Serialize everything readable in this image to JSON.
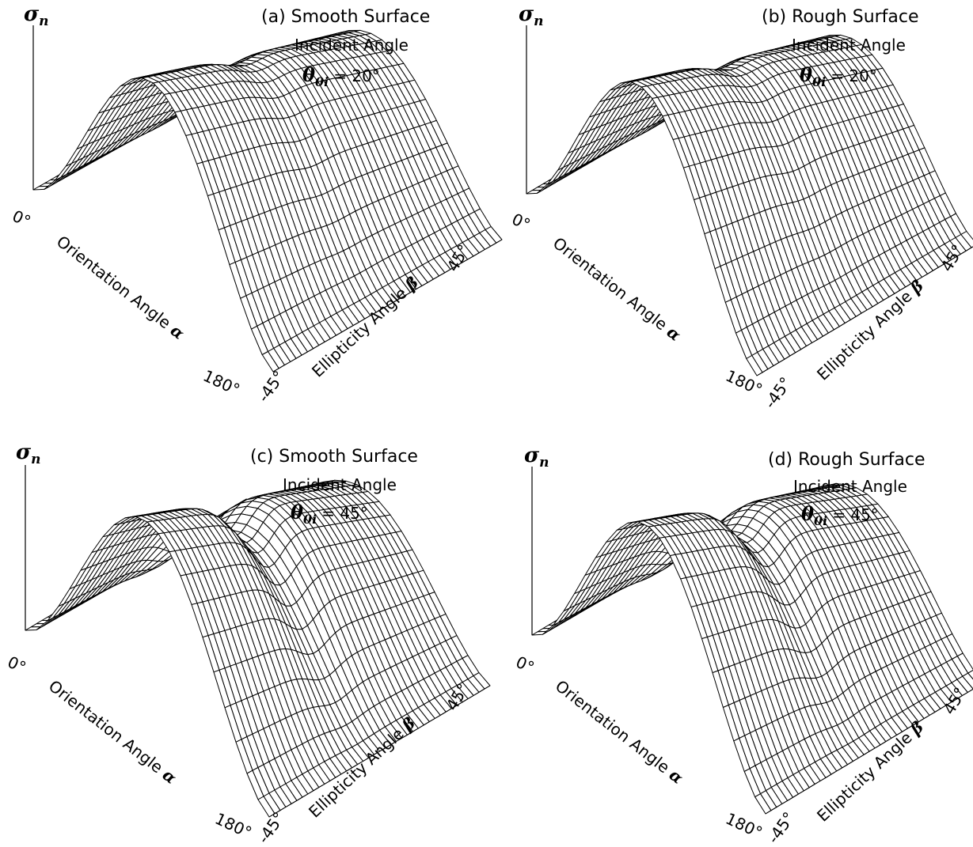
{
  "figure": {
    "z_axis_symbol": "σ",
    "z_axis_subscript": "n",
    "theta_symbol": "θ",
    "theta_subscript": "0i",
    "orientation_label": "Orientation Angle",
    "orientation_symbol": "α",
    "ellipticity_label": "Ellipticity Angle",
    "ellipticity_symbol": "β",
    "orientation_tick_start": "0°",
    "orientation_tick_end": "180°",
    "ellipticity_tick_start": "-45°",
    "ellipticity_tick_end": "45°",
    "incident_label": "Incident Angle",
    "line_color": "#000000",
    "background": "#ffffff"
  },
  "chart_data": [
    {
      "type": "surface",
      "panel_label": "(a) Smooth Surface",
      "subtitle": "Incident Angle",
      "incident_angle_text": "= 20°",
      "incident_angle_deg": 20,
      "surface": "smooth",
      "x_axis": "Orientation Angle α",
      "x_range": [
        0,
        180
      ],
      "y_axis": "Ellipticity Angle β",
      "y_range": [
        -45,
        45
      ],
      "z_axis": "σn",
      "peak_ratio_at_beta_45": 0.55,
      "ridge_dip": 0.05
    },
    {
      "type": "surface",
      "panel_label": "(b) Rough Surface",
      "subtitle": "Incident Angle",
      "incident_angle_text": "= 20°",
      "incident_angle_deg": 20,
      "surface": "rough",
      "x_axis": "Orientation Angle α",
      "x_range": [
        0,
        180
      ],
      "y_axis": "Ellipticity Angle β",
      "y_range": [
        -45,
        45
      ],
      "z_axis": "σn",
      "peak_ratio_at_beta_45": 0.55,
      "ridge_dip": 0.05
    },
    {
      "type": "surface",
      "panel_label": "(c) Smooth Surface",
      "subtitle": "Incident Angle",
      "incident_angle_text": "= 45°",
      "incident_angle_deg": 45,
      "surface": "smooth",
      "x_axis": "Orientation Angle α",
      "x_range": [
        0,
        180
      ],
      "y_axis": "Ellipticity Angle β",
      "y_range": [
        -45,
        45
      ],
      "z_axis": "σn",
      "peak_ratio_at_beta_45": 0.5,
      "ridge_dip": 0.22
    },
    {
      "type": "surface",
      "panel_label": "(d) Rough Surface",
      "subtitle": "Incident Angle",
      "incident_angle_text": "= 45°",
      "incident_angle_deg": 45,
      "surface": "rough",
      "x_axis": "Orientation Angle α",
      "x_range": [
        0,
        180
      ],
      "y_axis": "Ellipticity Angle β",
      "y_range": [
        -45,
        45
      ],
      "z_axis": "σn",
      "peak_ratio_at_beta_45": 0.5,
      "ridge_dip": 0.2
    }
  ]
}
